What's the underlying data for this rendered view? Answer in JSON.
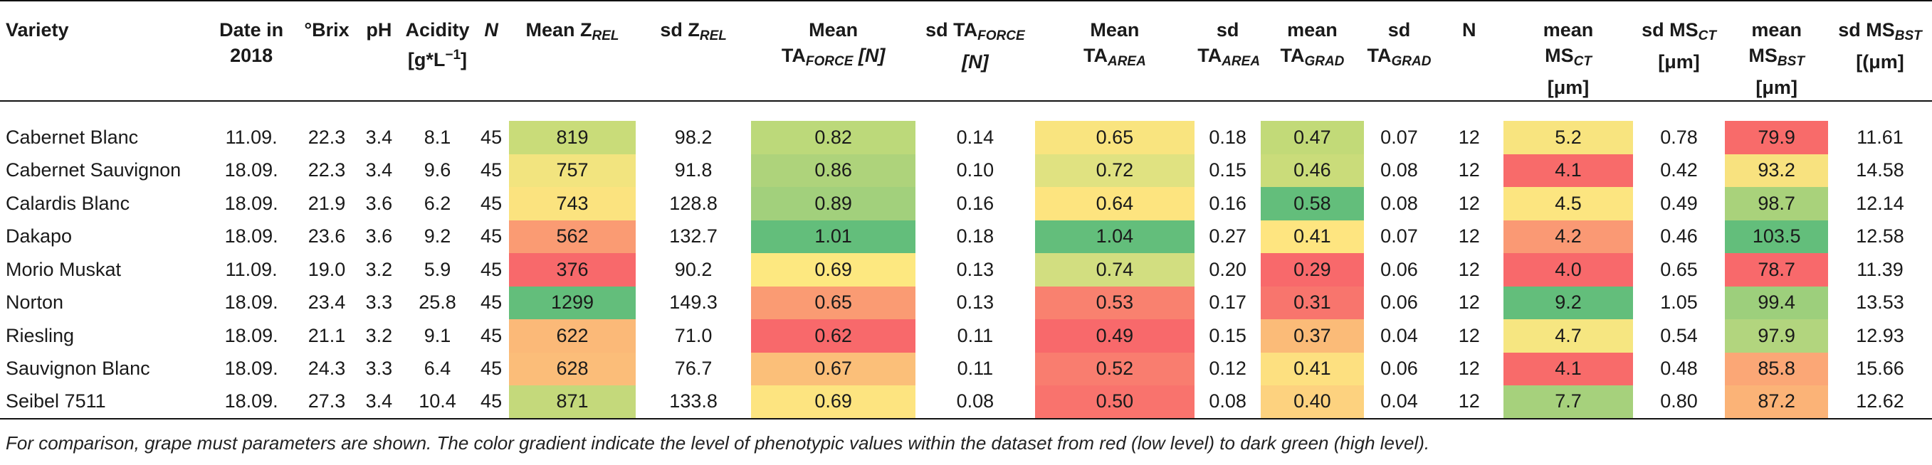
{
  "table": {
    "headers": {
      "variety": "Variety",
      "date": "Date in 2018",
      "brix": "°Brix",
      "ph": "pH",
      "acidity": "Acidity",
      "acidity_unit_pre": "[g*L",
      "acidity_unit_sup": "−1",
      "acidity_unit_post": "]",
      "n1": "N",
      "mean_zrel_main": "Mean Z",
      "mean_zrel_sub": "REL",
      "sd_zrel_main": "sd Z",
      "sd_zrel_sub": "REL",
      "mean_taforce_l1": "Mean",
      "mean_taforce_main": "TA",
      "mean_taforce_sub": "FORCE",
      "mean_taforce_unit": " [N]",
      "sd_taforce_main": "sd TA",
      "sd_taforce_sub": "FORCE",
      "sd_taforce_unit": "[N]",
      "mean_taarea_l1": "Mean",
      "mean_taarea_main": "TA",
      "mean_taarea_sub": "AREA",
      "sd_taarea_l1": "sd",
      "sd_taarea_main": "TA",
      "sd_taarea_sub": "AREA",
      "mean_tagrad_l1": "mean",
      "mean_tagrad_main": "TA",
      "mean_tagrad_sub": "GRAD",
      "sd_tagrad_l1": "sd",
      "sd_tagrad_main": "TA",
      "sd_tagrad_sub": "GRAD",
      "n2": "N",
      "mean_msct_l1": "mean",
      "mean_msct_main": "MS",
      "mean_msct_sub": "CT",
      "mean_msct_unit": "[μm]",
      "sd_msct_main": "sd MS",
      "sd_msct_sub": "CT",
      "sd_msct_unit": "[μm]",
      "mean_msbst_l1": "mean",
      "mean_msbst_main": "MS",
      "mean_msbst_sub": "BST",
      "mean_msbst_unit": "[μm]",
      "sd_msbst_main": "sd MS",
      "sd_msbst_sub": "BST",
      "sd_msbst_unit": "[(μm]"
    },
    "rows": [
      {
        "variety": "Cabernet Blanc",
        "date": "11.09.",
        "brix": "22.3",
        "ph": "3.4",
        "acidity": "8.1",
        "n1": "45",
        "mean_zrel": "819",
        "sd_zrel": "98.2",
        "mean_taforce": "0.82",
        "sd_taforce": "0.14",
        "mean_taarea": "0.65",
        "sd_taarea": "0.18",
        "mean_tagrad": "0.47",
        "sd_tagrad": "0.07",
        "n2": "12",
        "mean_msct": "5.2",
        "sd_msct": "0.78",
        "mean_msbst": "79.9",
        "sd_msbst": "11.61",
        "colors": {
          "zrel": "#c9dc79",
          "taforce": "#bcd97a",
          "taarea": "#f9e47f",
          "tagrad": "#c2da78",
          "msct": "#f8e47f",
          "msbst": "#f86b6a"
        }
      },
      {
        "variety": "Cabernet Sauvignon",
        "date": "18.09.",
        "brix": "22.3",
        "ph": "3.4",
        "acidity": "9.6",
        "n1": "45",
        "mean_zrel": "757",
        "sd_zrel": "91.8",
        "mean_taforce": "0.86",
        "sd_taforce": "0.10",
        "mean_taarea": "0.72",
        "sd_taarea": "0.15",
        "mean_tagrad": "0.46",
        "sd_tagrad": "0.08",
        "n2": "12",
        "mean_msct": "4.1",
        "sd_msct": "0.42",
        "mean_msbst": "93.2",
        "sd_msbst": "14.58",
        "colors": {
          "zrel": "#f2e47f",
          "taforce": "#aed37b",
          "taarea": "#e0e281",
          "tagrad": "#cadc7a",
          "msct": "#f86b6a",
          "msbst": "#f8e27f"
        }
      },
      {
        "variety": "Calardis Blanc",
        "date": "18.09.",
        "brix": "21.9",
        "ph": "3.6",
        "acidity": "6.2",
        "n1": "45",
        "mean_zrel": "743",
        "sd_zrel": "128.8",
        "mean_taforce": "0.89",
        "sd_taforce": "0.16",
        "mean_taarea": "0.64",
        "sd_taarea": "0.16",
        "mean_tagrad": "0.58",
        "sd_tagrad": "0.08",
        "n2": "12",
        "mean_msct": "4.5",
        "sd_msct": "0.49",
        "mean_msbst": "98.7",
        "sd_msbst": "12.14",
        "colors": {
          "zrel": "#fbe37f",
          "taforce": "#a2d07c",
          "taarea": "#fde47f",
          "tagrad": "#63be7b",
          "msct": "#fce580",
          "msbst": "#a9d27b"
        }
      },
      {
        "variety": "Dakapo",
        "date": "18.09.",
        "brix": "23.6",
        "ph": "3.6",
        "acidity": "9.2",
        "n1": "45",
        "mean_zrel": "562",
        "sd_zrel": "132.7",
        "mean_taforce": "1.01",
        "sd_taforce": "0.18",
        "mean_taarea": "1.04",
        "sd_taarea": "0.27",
        "mean_tagrad": "0.41",
        "sd_tagrad": "0.07",
        "n2": "12",
        "mean_msct": "4.2",
        "sd_msct": "0.46",
        "mean_msbst": "103.5",
        "sd_msbst": "12.58",
        "colors": {
          "zrel": "#fa9b73",
          "taforce": "#63be7b",
          "taarea": "#63be7b",
          "tagrad": "#fee580",
          "msct": "#fa9974",
          "msbst": "#63be7b"
        }
      },
      {
        "variety": "Morio Muskat",
        "date": "11.09.",
        "brix": "19.0",
        "ph": "3.2",
        "acidity": "5.9",
        "n1": "45",
        "mean_zrel": "376",
        "sd_zrel": "90.2",
        "mean_taforce": "0.69",
        "sd_taforce": "0.13",
        "mean_taarea": "0.74",
        "sd_taarea": "0.20",
        "mean_tagrad": "0.29",
        "sd_tagrad": "0.06",
        "n2": "12",
        "mean_msct": "4.0",
        "sd_msct": "0.65",
        "mean_msbst": "78.7",
        "sd_msbst": "11.39",
        "colors": {
          "zrel": "#f8696b",
          "taforce": "#fde880",
          "taarea": "#d2de80",
          "tagrad": "#f8696b",
          "msct": "#f8696b",
          "msbst": "#f8696b"
        }
      },
      {
        "variety": "Norton",
        "date": "18.09.",
        "brix": "23.4",
        "ph": "3.3",
        "acidity": "25.8",
        "n1": "45",
        "mean_zrel": "1299",
        "sd_zrel": "149.3",
        "mean_taforce": "0.65",
        "sd_taforce": "0.13",
        "mean_taarea": "0.53",
        "sd_taarea": "0.17",
        "mean_tagrad": "0.31",
        "sd_tagrad": "0.06",
        "n2": "12",
        "mean_msct": "9.2",
        "sd_msct": "1.05",
        "mean_msbst": "99.4",
        "sd_msbst": "13.53",
        "colors": {
          "zrel": "#63be7b",
          "taforce": "#fa9b73",
          "taarea": "#f9816f",
          "tagrad": "#f8756d",
          "msct": "#63be7b",
          "msbst": "#9dcf7c"
        }
      },
      {
        "variety": "Riesling",
        "date": "18.09.",
        "brix": "21.1",
        "ph": "3.2",
        "acidity": "9.1",
        "n1": "45",
        "mean_zrel": "622",
        "sd_zrel": "71.0",
        "mean_taforce": "0.62",
        "sd_taforce": "0.11",
        "mean_taarea": "0.49",
        "sd_taarea": "0.15",
        "mean_tagrad": "0.37",
        "sd_tagrad": "0.04",
        "n2": "12",
        "mean_msct": "4.7",
        "sd_msct": "0.54",
        "mean_msbst": "97.9",
        "sd_msbst": "12.93",
        "colors": {
          "zrel": "#fbb978",
          "taforce": "#f8696b",
          "taarea": "#f8696b",
          "tagrad": "#fbbb78",
          "msct": "#f6e681",
          "msbst": "#b2d57e"
        }
      },
      {
        "variety": "Sauvignon Blanc",
        "date": "18.09.",
        "brix": "24.3",
        "ph": "3.3",
        "acidity": "6.4",
        "n1": "45",
        "mean_zrel": "628",
        "sd_zrel": "76.7",
        "mean_taforce": "0.67",
        "sd_taforce": "0.11",
        "mean_taarea": "0.52",
        "sd_taarea": "0.12",
        "mean_tagrad": "0.41",
        "sd_tagrad": "0.06",
        "n2": "12",
        "mean_msct": "4.1",
        "sd_msct": "0.48",
        "mean_msbst": "85.8",
        "sd_msbst": "15.66",
        "colors": {
          "zrel": "#fbbd79",
          "taforce": "#fbbf79",
          "taarea": "#f97d6f",
          "tagrad": "#fde080",
          "msct": "#f86b6a",
          "msbst": "#fba776"
        }
      },
      {
        "variety": "Seibel 7511",
        "date": "18.09.",
        "brix": "27.3",
        "ph": "3.4",
        "acidity": "10.4",
        "n1": "45",
        "mean_zrel": "871",
        "sd_zrel": "133.8",
        "mean_taforce": "0.69",
        "sd_taforce": "0.08",
        "mean_taarea": "0.50",
        "sd_taarea": "0.08",
        "mean_tagrad": "0.40",
        "sd_tagrad": "0.04",
        "n2": "12",
        "mean_msct": "7.7",
        "sd_msct": "0.80",
        "mean_msbst": "87.2",
        "sd_msbst": "12.62",
        "colors": {
          "zrel": "#c4d97b",
          "taforce": "#fde480",
          "taarea": "#f9736d",
          "tagrad": "#fdd27f",
          "msct": "#a6d17c",
          "msbst": "#fbb377"
        }
      }
    ]
  },
  "footnote": "For comparison, grape must parameters are shown. The color gradient indicate the level of phenotypic values within the dataset from red (low level) to dark green (high level)."
}
